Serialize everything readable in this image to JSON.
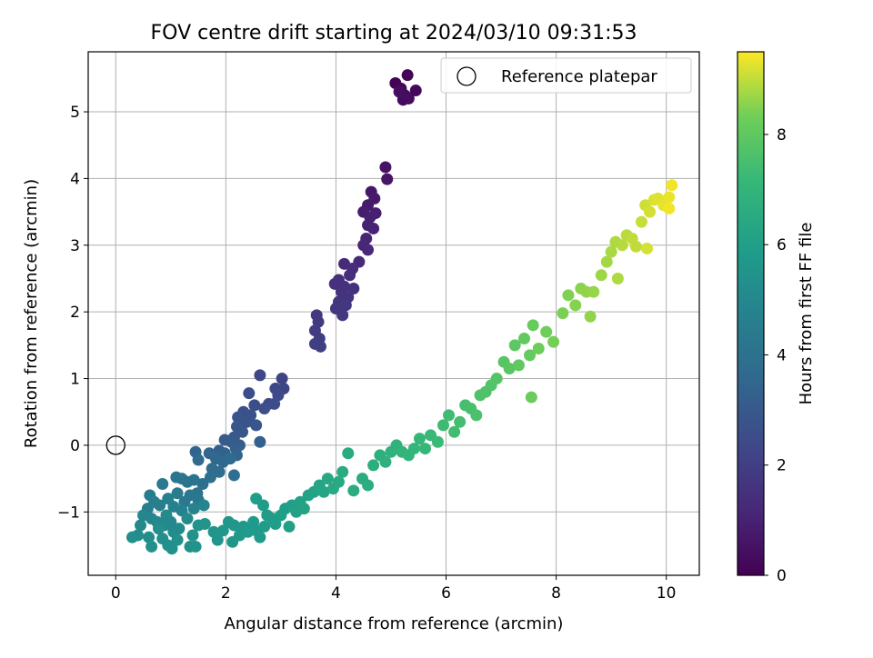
{
  "chart_data": {
    "type": "scatter",
    "title": "FOV centre drift starting at 2024/03/10 09:31:53",
    "xlabel": "Angular distance from reference (arcmin)",
    "ylabel": "Rotation from reference (arcmin)",
    "colorbar_label": "Hours from first FF file",
    "colormap": "viridis",
    "xlim": [
      -0.5,
      10.6
    ],
    "ylim": [
      -1.95,
      5.9
    ],
    "clim": [
      0,
      9.5
    ],
    "xticks": [
      0,
      2,
      4,
      6,
      8,
      10
    ],
    "xtick_labels": [
      "0",
      "2",
      "4",
      "6",
      "8",
      "10"
    ],
    "yticks": [
      -1,
      0,
      1,
      2,
      3,
      4,
      5
    ],
    "ytick_labels": [
      "−1",
      "0",
      "1",
      "2",
      "3",
      "4",
      "5"
    ],
    "cticks": [
      0,
      2,
      4,
      6,
      8
    ],
    "ctick_labels": [
      "0",
      "2",
      "4",
      "6",
      "8"
    ],
    "grid": true,
    "legend": {
      "label": "Reference platepar",
      "placement": "top-right",
      "marker": "open-circle"
    },
    "reference_point": {
      "x": 0,
      "y": 0
    },
    "series": [
      {
        "points": [
          [
            5.08,
            5.43,
            0.05
          ],
          [
            5.3,
            5.55,
            0.1
          ],
          [
            5.18,
            5.35,
            0.15
          ],
          [
            5.25,
            5.25,
            0.2
          ],
          [
            5.45,
            5.32,
            0.25
          ],
          [
            5.22,
            5.18,
            0.3
          ],
          [
            5.32,
            5.2,
            0.35
          ],
          [
            5.15,
            5.3,
            0.4
          ],
          [
            4.9,
            4.17,
            0.55
          ],
          [
            4.93,
            3.99,
            0.6
          ],
          [
            4.64,
            3.8,
            0.7
          ],
          [
            4.7,
            3.7,
            0.75
          ],
          [
            4.58,
            3.6,
            0.8
          ],
          [
            4.5,
            3.5,
            0.85
          ],
          [
            4.72,
            3.48,
            0.9
          ],
          [
            4.62,
            3.42,
            0.95
          ],
          [
            4.58,
            3.3,
            1.0
          ],
          [
            4.68,
            3.25,
            1.05
          ],
          [
            4.55,
            3.1,
            1.1
          ],
          [
            4.5,
            3.0,
            1.15
          ],
          [
            4.58,
            2.93,
            1.2
          ],
          [
            4.42,
            2.75,
            1.25
          ],
          [
            4.15,
            2.72,
            1.3
          ],
          [
            4.3,
            2.65,
            1.35
          ],
          [
            4.25,
            2.55,
            1.4
          ],
          [
            4.05,
            2.48,
            1.45
          ],
          [
            3.98,
            2.42,
            1.5
          ],
          [
            4.15,
            2.38,
            1.5
          ],
          [
            4.32,
            2.35,
            1.55
          ],
          [
            4.1,
            2.3,
            1.6
          ],
          [
            4.22,
            2.22,
            1.6
          ],
          [
            4.05,
            2.15,
            1.65
          ],
          [
            4.18,
            2.1,
            1.7
          ],
          [
            4.0,
            2.05,
            1.7
          ],
          [
            4.12,
            1.95,
            1.75
          ],
          [
            3.65,
            1.95,
            1.8
          ],
          [
            3.68,
            1.85,
            1.85
          ],
          [
            3.62,
            1.72,
            1.9
          ],
          [
            3.7,
            1.6,
            1.95
          ],
          [
            3.62,
            1.52,
            2.0
          ],
          [
            3.72,
            1.48,
            2.0
          ],
          [
            3.02,
            1.0,
            2.2
          ],
          [
            3.05,
            0.85,
            2.25
          ],
          [
            2.62,
            1.05,
            2.3
          ],
          [
            2.9,
            0.85,
            2.35
          ],
          [
            2.95,
            0.75,
            2.4
          ],
          [
            2.78,
            0.62,
            2.45
          ],
          [
            2.42,
            0.78,
            2.5
          ],
          [
            2.88,
            0.62,
            2.5
          ],
          [
            2.52,
            0.6,
            2.55
          ],
          [
            2.7,
            0.55,
            2.6
          ],
          [
            2.32,
            0.5,
            2.65
          ],
          [
            2.45,
            0.45,
            2.7
          ],
          [
            2.22,
            0.42,
            2.75
          ],
          [
            2.38,
            0.35,
            2.8
          ],
          [
            2.55,
            0.3,
            2.85
          ],
          [
            2.2,
            0.28,
            2.9
          ],
          [
            2.3,
            0.2,
            2.95
          ],
          [
            2.15,
            0.12,
            3.0
          ],
          [
            1.98,
            0.08,
            3.05
          ],
          [
            2.1,
            0.05,
            3.1
          ],
          [
            2.25,
            0.0,
            3.15
          ],
          [
            2.18,
            -0.05,
            3.2
          ],
          [
            2.62,
            0.05,
            3.25
          ],
          [
            1.88,
            -0.08,
            3.3
          ],
          [
            1.98,
            -0.12,
            3.35
          ],
          [
            2.2,
            -0.15,
            3.4
          ],
          [
            1.45,
            -0.1,
            3.45
          ],
          [
            1.7,
            -0.12,
            3.5
          ],
          [
            1.82,
            -0.2,
            3.55
          ],
          [
            1.95,
            -0.25,
            3.6
          ],
          [
            2.08,
            -0.2,
            3.65
          ],
          [
            1.5,
            -0.22,
            3.7
          ],
          [
            1.75,
            -0.35,
            3.75
          ],
          [
            1.88,
            -0.4,
            3.8
          ],
          [
            2.15,
            -0.45,
            3.85
          ],
          [
            1.72,
            -0.48,
            3.9
          ],
          [
            1.58,
            -0.58,
            3.95
          ],
          [
            1.48,
            -0.72,
            4.0
          ],
          [
            1.42,
            -0.52,
            4.05
          ],
          [
            1.3,
            -0.55,
            4.1
          ],
          [
            1.2,
            -0.5,
            4.15
          ],
          [
            1.1,
            -0.48,
            4.2
          ],
          [
            1.35,
            -0.75,
            4.25
          ],
          [
            1.5,
            -0.82,
            4.3
          ],
          [
            1.25,
            -0.85,
            4.35
          ],
          [
            0.85,
            -0.58,
            4.4
          ],
          [
            1.12,
            -0.72,
            4.45
          ],
          [
            0.62,
            -0.75,
            4.45
          ],
          [
            0.7,
            -0.85,
            4.5
          ],
          [
            0.58,
            -0.95,
            4.55
          ],
          [
            0.8,
            -0.9,
            4.6
          ],
          [
            0.95,
            -0.8,
            4.65
          ],
          [
            1.05,
            -0.92,
            4.7
          ],
          [
            1.2,
            -0.98,
            4.75
          ],
          [
            1.42,
            -0.95,
            4.8
          ],
          [
            1.6,
            -0.9,
            4.85
          ],
          [
            0.5,
            -1.05,
            4.9
          ],
          [
            0.65,
            -1.1,
            4.95
          ],
          [
            0.75,
            -1.15,
            5.0
          ],
          [
            0.45,
            -1.2,
            5.0
          ],
          [
            0.88,
            -1.2,
            5.05
          ],
          [
            1.0,
            -1.15,
            5.05
          ],
          [
            0.92,
            -1.05,
            5.1
          ],
          [
            1.05,
            -1.3,
            5.1
          ],
          [
            1.15,
            -1.25,
            5.15
          ],
          [
            1.3,
            -1.1,
            5.15
          ],
          [
            0.4,
            -1.35,
            5.2
          ],
          [
            0.6,
            -1.38,
            5.2
          ],
          [
            0.78,
            -1.25,
            5.25
          ],
          [
            0.3,
            -1.38,
            5.25
          ],
          [
            0.85,
            -1.4,
            5.3
          ],
          [
            0.95,
            -1.5,
            5.3
          ],
          [
            1.12,
            -1.42,
            5.35
          ],
          [
            1.02,
            -1.55,
            5.35
          ],
          [
            0.65,
            -1.52,
            5.4
          ],
          [
            1.35,
            -1.52,
            5.4
          ],
          [
            1.45,
            -1.52,
            5.45
          ],
          [
            1.4,
            -1.35,
            5.45
          ],
          [
            1.5,
            -1.2,
            5.5
          ],
          [
            1.62,
            -1.18,
            5.5
          ],
          [
            1.78,
            -1.3,
            5.55
          ],
          [
            1.85,
            -1.42,
            5.55
          ],
          [
            1.95,
            -1.28,
            5.6
          ],
          [
            2.05,
            -1.15,
            5.6
          ],
          [
            2.15,
            -1.2,
            5.65
          ],
          [
            2.12,
            -1.45,
            5.65
          ],
          [
            2.25,
            -1.35,
            5.7
          ],
          [
            2.32,
            -1.22,
            5.7
          ],
          [
            2.4,
            -1.3,
            5.75
          ],
          [
            2.5,
            -1.15,
            5.75
          ],
          [
            2.55,
            -1.28,
            5.8
          ],
          [
            2.62,
            -1.38,
            5.8
          ],
          [
            2.7,
            -1.22,
            5.85
          ],
          [
            2.75,
            -1.05,
            5.85
          ],
          [
            2.85,
            -1.1,
            5.9
          ],
          [
            2.68,
            -0.9,
            5.9
          ],
          [
            2.55,
            -0.8,
            5.95
          ],
          [
            2.9,
            -1.18,
            5.95
          ],
          [
            3.0,
            -1.05,
            6.0
          ],
          [
            3.08,
            -0.95,
            6.0
          ],
          [
            3.15,
            -1.22,
            6.05
          ],
          [
            3.2,
            -0.9,
            6.05
          ],
          [
            3.28,
            -1.0,
            6.1
          ],
          [
            3.35,
            -0.85,
            6.1
          ],
          [
            3.42,
            -0.95,
            6.15
          ],
          [
            3.5,
            -0.75,
            6.15
          ],
          [
            3.6,
            -0.7,
            6.2
          ],
          [
            3.7,
            -0.6,
            6.25
          ],
          [
            3.78,
            -0.7,
            6.3
          ],
          [
            3.85,
            -0.5,
            6.35
          ],
          [
            3.95,
            -0.65,
            6.4
          ],
          [
            4.05,
            -0.55,
            6.45
          ],
          [
            4.12,
            -0.4,
            6.5
          ],
          [
            4.22,
            -0.12,
            6.5
          ],
          [
            4.32,
            -0.68,
            6.55
          ],
          [
            4.48,
            -0.5,
            6.6
          ],
          [
            4.58,
            -0.6,
            6.65
          ],
          [
            4.68,
            -0.3,
            6.7
          ],
          [
            4.8,
            -0.15,
            6.75
          ],
          [
            4.9,
            -0.25,
            6.8
          ],
          [
            5.0,
            -0.1,
            6.85
          ],
          [
            5.1,
            0.0,
            6.9
          ],
          [
            5.2,
            -0.1,
            6.95
          ],
          [
            5.32,
            -0.15,
            7.0
          ],
          [
            5.42,
            -0.05,
            7.05
          ],
          [
            5.52,
            0.1,
            7.1
          ],
          [
            5.62,
            -0.05,
            7.15
          ],
          [
            5.72,
            0.15,
            7.2
          ],
          [
            5.85,
            0.05,
            7.25
          ],
          [
            5.95,
            0.3,
            7.3
          ],
          [
            6.05,
            0.45,
            7.35
          ],
          [
            6.15,
            0.2,
            7.4
          ],
          [
            6.25,
            0.35,
            7.45
          ],
          [
            6.35,
            0.6,
            7.5
          ],
          [
            6.45,
            0.55,
            7.55
          ],
          [
            6.55,
            0.45,
            7.6
          ],
          [
            6.62,
            0.75,
            7.65
          ],
          [
            6.72,
            0.8,
            7.7
          ],
          [
            6.82,
            0.9,
            7.75
          ],
          [
            6.92,
            1.0,
            7.8
          ],
          [
            7.05,
            1.25,
            7.85
          ],
          [
            7.15,
            1.15,
            7.9
          ],
          [
            7.25,
            1.5,
            7.95
          ],
          [
            7.32,
            1.2,
            8.0
          ],
          [
            7.42,
            1.6,
            8.05
          ],
          [
            7.52,
            1.35,
            8.1
          ],
          [
            7.58,
            1.8,
            8.15
          ],
          [
            7.55,
            0.72,
            8.2
          ],
          [
            7.68,
            1.45,
            8.25
          ],
          [
            7.82,
            1.7,
            8.3
          ],
          [
            7.95,
            1.55,
            8.35
          ],
          [
            8.12,
            1.98,
            8.4
          ],
          [
            8.22,
            2.25,
            8.45
          ],
          [
            8.35,
            2.1,
            8.5
          ],
          [
            8.45,
            2.35,
            8.55
          ],
          [
            8.55,
            2.3,
            8.6
          ],
          [
            8.62,
            1.93,
            8.6
          ],
          [
            8.68,
            2.3,
            8.65
          ],
          [
            8.82,
            2.55,
            8.7
          ],
          [
            8.92,
            2.75,
            8.75
          ],
          [
            9.0,
            2.9,
            8.8
          ],
          [
            9.08,
            3.05,
            8.85
          ],
          [
            9.12,
            2.5,
            8.85
          ],
          [
            9.2,
            3.0,
            8.9
          ],
          [
            9.28,
            3.15,
            8.95
          ],
          [
            9.38,
            3.1,
            9.0
          ],
          [
            9.45,
            2.98,
            9.0
          ],
          [
            9.55,
            3.35,
            9.05
          ],
          [
            9.62,
            3.6,
            9.1
          ],
          [
            9.7,
            3.5,
            9.15
          ],
          [
            9.65,
            2.95,
            9.15
          ],
          [
            9.78,
            3.68,
            9.2
          ],
          [
            9.85,
            3.7,
            9.25
          ],
          [
            9.95,
            3.6,
            9.3
          ],
          [
            10.05,
            3.72,
            9.35
          ],
          [
            10.1,
            3.9,
            9.4
          ],
          [
            10.05,
            3.55,
            9.4
          ]
        ]
      }
    ]
  }
}
